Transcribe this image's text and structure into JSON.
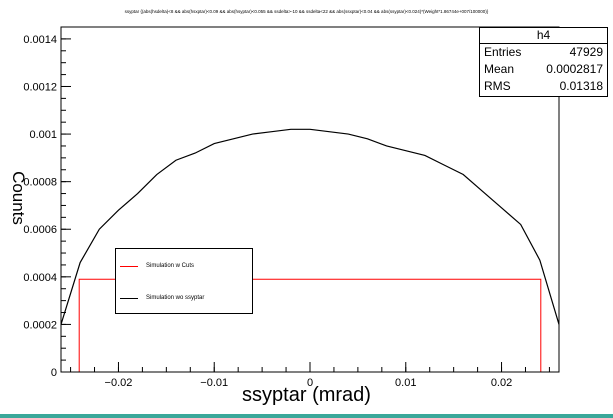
{
  "chart_data": {
    "type": "line",
    "title": "ssyptar {(abs(hsdelta)<8 && abs(hsxptar)<0.09 && abs(hsyptar)<0.055 && ssdelta>-10 && ssdelta<22 && abs(ssxptar)<0.04 && abs(ssyptar)<0.024)*(Weight*1.86744e+007/100000)}",
    "xlabel": "ssyptar (mrad)",
    "ylabel": "Counts",
    "xlim": [
      -0.026,
      0.026
    ],
    "ylim": [
      0,
      0.00145
    ],
    "xticks": [
      -0.02,
      -0.01,
      0,
      0.01,
      0.02
    ],
    "xtick_labels": [
      "−0.02",
      "−0.01",
      "0",
      "0.01",
      "0.02"
    ],
    "yticks": [
      0,
      0.0002,
      0.0004,
      0.0006,
      0.0008,
      0.001,
      0.0012,
      0.0014
    ],
    "ytick_labels": [
      "0",
      "0.0002",
      "0.0004",
      "0.0006",
      "0.0008",
      "0.001",
      "0.0012",
      "0.0014"
    ],
    "grid": false,
    "legend_position": "lower-left",
    "stats": {
      "name": "h4",
      "entries_label": "Entries",
      "entries": "47929",
      "mean_label": "Mean",
      "mean": "0.0002817",
      "rms_label": "RMS",
      "rms": "0.01318"
    },
    "series": [
      {
        "name": "Simulation w Cuts",
        "color": "#ff0000",
        "x": [
          -0.026,
          -0.0241,
          -0.0241,
          0.0241,
          0.0241,
          0.026
        ],
        "y": [
          0,
          0,
          0.00039,
          0.00039,
          0,
          0
        ]
      },
      {
        "name": "Simulation wo ssyptar",
        "color": "#000000",
        "x": [
          -0.026,
          -0.024,
          -0.022,
          -0.02,
          -0.018,
          -0.016,
          -0.014,
          -0.012,
          -0.01,
          -0.008,
          -0.006,
          -0.004,
          -0.002,
          0,
          0.002,
          0.004,
          0.006,
          0.008,
          0.01,
          0.012,
          0.014,
          0.016,
          0.018,
          0.02,
          0.022,
          0.024,
          0.026
        ],
        "y": [
          0.0002,
          0.00046,
          0.0006,
          0.00068,
          0.00075,
          0.00083,
          0.00089,
          0.00092,
          0.00096,
          0.00098,
          0.001,
          0.00101,
          0.00102,
          0.00102,
          0.00101,
          0.001,
          0.00098,
          0.00095,
          0.00093,
          0.00091,
          0.00087,
          0.00083,
          0.00076,
          0.00069,
          0.00062,
          0.00047,
          0.0002
        ]
      }
    ]
  }
}
